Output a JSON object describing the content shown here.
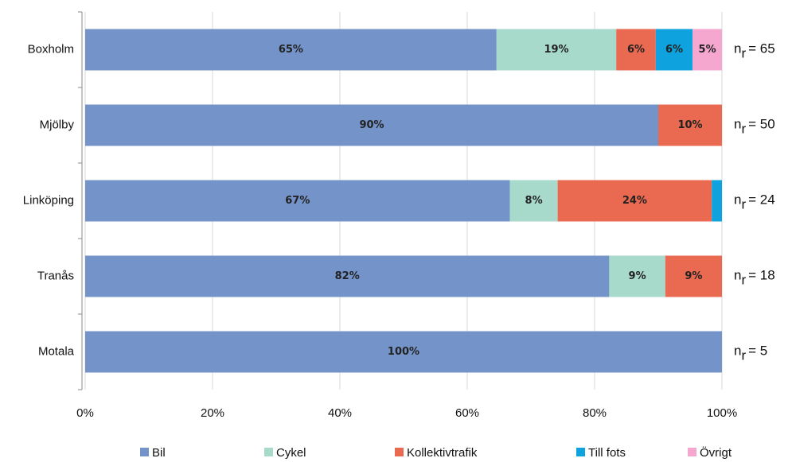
{
  "chart_data": {
    "type": "stacked-barh",
    "categories": [
      "Boxholm",
      "Mjölby",
      "Linköping",
      "Tranås",
      "Motala"
    ],
    "series": [
      {
        "name": "Bil",
        "color": "#7393c9",
        "values": [
          64.6,
          90,
          66.7,
          82.3,
          100
        ],
        "value_labels": [
          "65%",
          "90%",
          "67%",
          "82%",
          "100%"
        ]
      },
      {
        "name": "Cykel",
        "color": "#a8dacb",
        "values": [
          18.8,
          null,
          7.5,
          8.8,
          null
        ],
        "value_labels": [
          "19%",
          null,
          "8%",
          "9%",
          null
        ]
      },
      {
        "name": "Kollektivtrafik",
        "color": "#e96a50",
        "values": [
          6.2,
          10,
          24.2,
          8.9,
          null
        ],
        "value_labels": [
          "6%",
          "10%",
          "24%",
          "9%",
          null
        ]
      },
      {
        "name": "Till fots",
        "color": "#0ea2de",
        "values": [
          5.8,
          null,
          1.6,
          null,
          null
        ],
        "value_labels": [
          "6%",
          null,
          null,
          null,
          null
        ]
      },
      {
        "name": "Övrigt",
        "color": "#f5a7d0",
        "values": [
          4.6,
          null,
          null,
          null,
          null
        ],
        "value_labels": [
          "5%",
          null,
          null,
          null,
          null
        ]
      }
    ],
    "xlim": [
      0,
      100
    ],
    "xticks": [
      {
        "value": 0,
        "label": "0%"
      },
      {
        "value": 20,
        "label": "20%"
      },
      {
        "value": 40,
        "label": "40%"
      },
      {
        "value": 60,
        "label": "60%"
      },
      {
        "value": 80,
        "label": "80%"
      },
      {
        "value": 100,
        "label": "100%"
      }
    ],
    "grid": true,
    "annotation_prefix": "n",
    "annotation_subscript": "r",
    "annotations": [
      "= 65",
      "= 50",
      "= 24",
      "= 18",
      "= 5"
    ],
    "legend": "bottom"
  }
}
